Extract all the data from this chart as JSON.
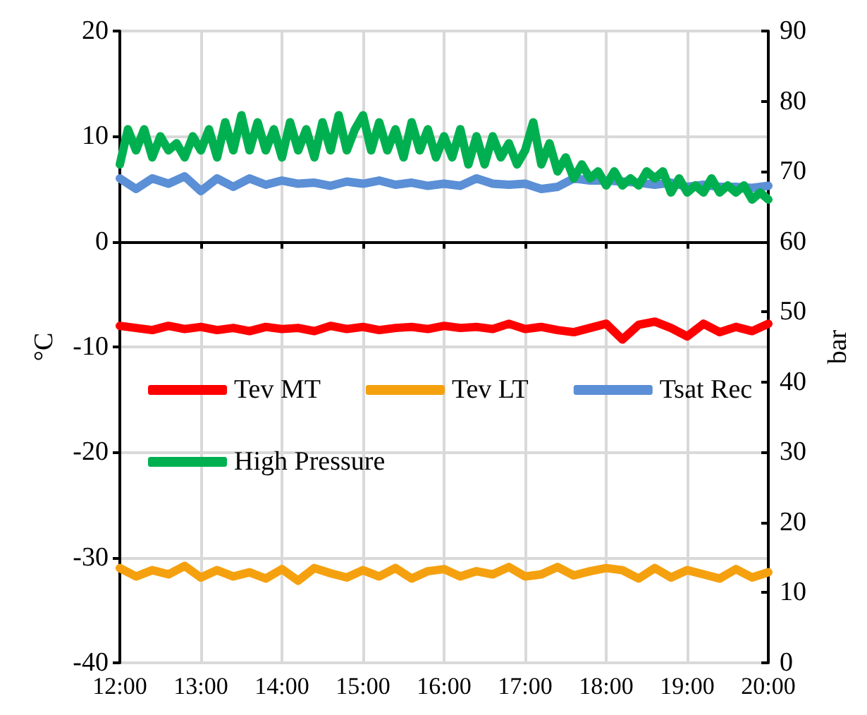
{
  "chart_data": {
    "type": "line",
    "ylabel": "°C",
    "y2label": "bar",
    "xlim": [
      12,
      20
    ],
    "xticks": [
      {
        "value": 12,
        "label": "12:00"
      },
      {
        "value": 13,
        "label": "13:00"
      },
      {
        "value": 14,
        "label": "14:00"
      },
      {
        "value": 15,
        "label": "15:00"
      },
      {
        "value": 16,
        "label": "16:00"
      },
      {
        "value": 17,
        "label": "17:00"
      },
      {
        "value": 18,
        "label": "18:00"
      },
      {
        "value": 19,
        "label": "19:00"
      },
      {
        "value": 20,
        "label": "20:00"
      }
    ],
    "ylim": [
      -40,
      20
    ],
    "yticks": [
      -40,
      -30,
      -20,
      -10,
      0,
      10,
      20
    ],
    "y2lim": [
      0,
      90
    ],
    "y2ticks": [
      0,
      10,
      20,
      30,
      40,
      50,
      60,
      70,
      80,
      90
    ],
    "grid": true,
    "legend": "center",
    "marker": "none",
    "line_style": "solid",
    "x": [
      12,
      12.2,
      12.4,
      12.6,
      12.8,
      13,
      13.2,
      13.4,
      13.6,
      13.8,
      14,
      14.2,
      14.4,
      14.6,
      14.8,
      15,
      15.2,
      15.4,
      15.6,
      15.8,
      16,
      16.2,
      16.4,
      16.6,
      16.8,
      17,
      17.2,
      17.4,
      17.6,
      17.8,
      18,
      18.2,
      18.4,
      18.6,
      18.8,
      19,
      19.2,
      19.4,
      19.6,
      19.8,
      20
    ],
    "series": [
      {
        "name": "Tev MT",
        "color": "#ff0000",
        "values": [
          -8,
          -8.2,
          -8.4,
          -8,
          -8.3,
          -8.1,
          -8.4,
          -8.2,
          -8.5,
          -8.1,
          -8.3,
          -8.2,
          -8.5,
          -8,
          -8.3,
          -8.1,
          -8.4,
          -8.2,
          -8.1,
          -8.3,
          -8,
          -8.2,
          -8.1,
          -8.3,
          -7.8,
          -8.3,
          -8.1,
          -8.4,
          -8.6,
          -8.2,
          -7.8,
          -9.3,
          -7.9,
          -7.6,
          -8.2,
          -9,
          -7.8,
          -8.6,
          -8.1,
          -8.5,
          -7.8
        ]
      },
      {
        "name": "Tev LT",
        "color": "#f5a10f",
        "values": [
          -31,
          -31.8,
          -31.2,
          -31.6,
          -30.8,
          -31.9,
          -31.2,
          -31.8,
          -31.4,
          -32,
          -31.1,
          -32.2,
          -31,
          -31.5,
          -31.9,
          -31.2,
          -31.8,
          -31,
          -32,
          -31.3,
          -31.1,
          -31.8,
          -31.3,
          -31.6,
          -30.9,
          -31.8,
          -31.6,
          -30.9,
          -31.7,
          -31.3,
          -31,
          -31.2,
          -32,
          -31,
          -31.9,
          -31.2,
          -31.6,
          -32,
          -31.1,
          -31.9,
          -31.4
        ]
      },
      {
        "name": "Tsat Rec",
        "color": "#5b8fd6",
        "values": [
          6,
          5,
          6,
          5.5,
          6.2,
          4.8,
          6,
          5.2,
          6,
          5.4,
          5.8,
          5.5,
          5.6,
          5.3,
          5.7,
          5.5,
          5.8,
          5.4,
          5.6,
          5.3,
          5.5,
          5.3,
          6,
          5.5,
          5.4,
          5.5,
          5,
          5.2,
          6,
          5.8,
          5.8,
          5.7,
          5.6,
          5.4,
          5.6,
          5.2,
          5.4,
          5.2,
          5.2,
          5.1,
          5.3
        ]
      },
      {
        "name": "High Pressure",
        "color": "#00b050",
        "axis": "y2",
        "x": [
          12,
          12.1,
          12.2,
          12.3,
          12.4,
          12.5,
          12.6,
          12.7,
          12.8,
          12.9,
          13,
          13.1,
          13.2,
          13.3,
          13.4,
          13.5,
          13.6,
          13.7,
          13.8,
          13.9,
          14,
          14.1,
          14.2,
          14.3,
          14.4,
          14.5,
          14.6,
          14.7,
          14.8,
          14.9,
          15,
          15.1,
          15.2,
          15.3,
          15.4,
          15.5,
          15.6,
          15.7,
          15.8,
          15.9,
          16,
          16.1,
          16.2,
          16.3,
          16.4,
          16.5,
          16.6,
          16.7,
          16.8,
          16.9,
          17,
          17.1,
          17.2,
          17.3,
          17.4,
          17.5,
          17.6,
          17.7,
          17.8,
          17.9,
          18,
          18.1,
          18.2,
          18.3,
          18.4,
          18.5,
          18.6,
          18.7,
          18.8,
          18.9,
          19,
          19.1,
          19.2,
          19.3,
          19.4,
          19.5,
          19.6,
          19.7,
          19.8,
          19.9,
          20
        ],
        "values": [
          71,
          76,
          73,
          76,
          72,
          75,
          73,
          74,
          72,
          75,
          73,
          76,
          72,
          77,
          73,
          78,
          73,
          77,
          73,
          76,
          72,
          77,
          73,
          76,
          72,
          77,
          73,
          78,
          73,
          76,
          78,
          73,
          77,
          73,
          76,
          72,
          77,
          73,
          76,
          72,
          75,
          72,
          76,
          71,
          75,
          71,
          75,
          72,
          74,
          71,
          73,
          77,
          71,
          74,
          70,
          72,
          69,
          71,
          69,
          70,
          68,
          70,
          68,
          69,
          68,
          70,
          69,
          70,
          67,
          69,
          67,
          68,
          67,
          69,
          67,
          68,
          67,
          68,
          66,
          67,
          66
        ]
      }
    ]
  }
}
